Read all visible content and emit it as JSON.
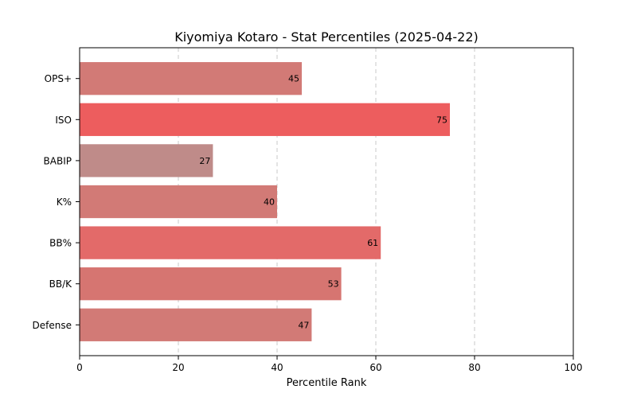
{
  "chart_data": {
    "type": "bar",
    "orientation": "horizontal",
    "title": "Kiyomiya Kotaro - Stat Percentiles (2025-04-22)",
    "xlabel": "Percentile Rank",
    "ylabel": "",
    "xlim": [
      0,
      100
    ],
    "xticks": [
      0,
      20,
      40,
      60,
      80,
      100
    ],
    "grid": "x-dashed",
    "categories": [
      "OPS+",
      "ISO",
      "BABIP",
      "K%",
      "BB%",
      "BB/K",
      "Defense"
    ],
    "values": [
      45,
      75,
      27,
      40,
      61,
      53,
      47
    ],
    "bar_colors": [
      "#d27a76",
      "#ed5d5e",
      "#bf8b89",
      "#d27a76",
      "#e36a69",
      "#d67571",
      "#d27a76"
    ]
  }
}
